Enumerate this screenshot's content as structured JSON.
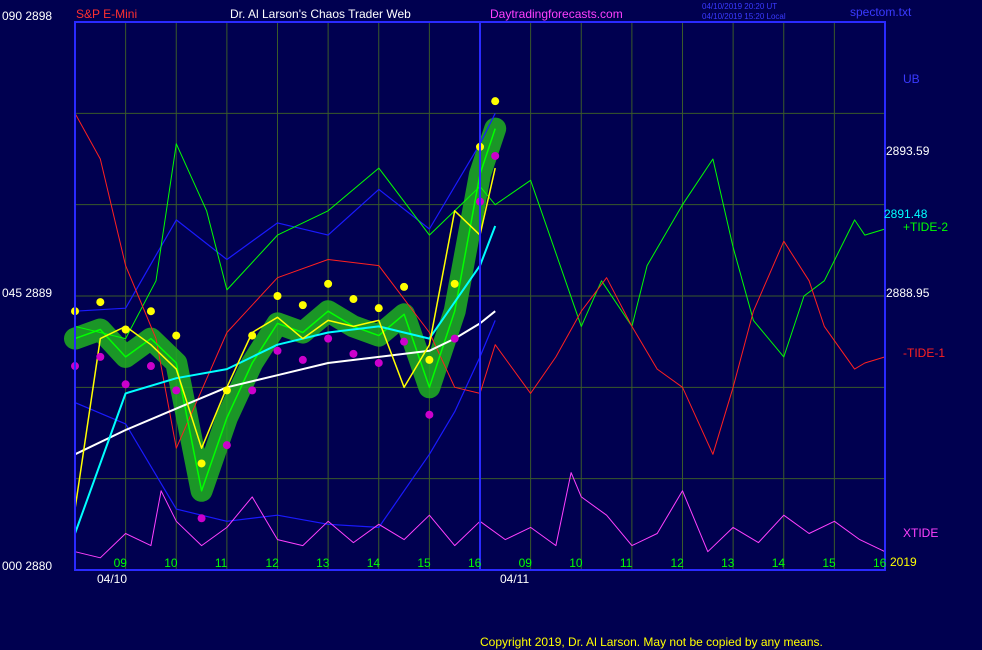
{
  "header": {
    "symbol": "S&P E-Mini",
    "title": "Dr. Al Larson's Chaos Trader Web",
    "site": "Daytradingforecasts.com",
    "time_utc": "04/10/2019 20:20 UT",
    "time_local": "04/10/2019 15:20 Local",
    "file": "spectom.txt"
  },
  "footer": {
    "copyright": "Copyright 2019, Dr. Al Larson. May not be copied by any means."
  },
  "colors": {
    "background": "#000050",
    "frame": "#2a2aff",
    "grid": "#3a5a2a",
    "price": "#00ff00",
    "halo": "#20b020",
    "fast_avg": "#ffff00",
    "mid_avg": "#00ffff",
    "slow_avg": "#ffffff",
    "micro": "#ff00ff",
    "tide_plus": "#00ff00",
    "tide_minus": "#ff2020",
    "xtide": "#ff40ff",
    "bands": "#1a1aff",
    "hi_dot": "#ffff00",
    "lo_dot": "#cc00cc"
  },
  "chart_data": {
    "type": "line",
    "title": "S&P E-Mini",
    "x_axis": {
      "labels": [
        "09",
        "10",
        "11",
        "12",
        "13",
        "14",
        "15",
        "16",
        "09",
        "10",
        "11",
        "12",
        "13",
        "14",
        "15",
        "16"
      ],
      "dates": [
        "04/10",
        "04/11"
      ],
      "year": "2019"
    },
    "y_axis": {
      "left_labels": [
        "090  2898",
        "045  2889",
        "000  2880"
      ],
      "ylim": [
        2880,
        2898
      ]
    },
    "right_labels": {
      "ub": "UB",
      "levels": [
        "2893.59",
        "2891.48",
        "2888.95"
      ],
      "series": [
        "+TIDE-2",
        "-TIDE-1",
        "XTIDE"
      ]
    },
    "series": [
      {
        "name": "price",
        "x": [
          0.0,
          0.5,
          1.0,
          1.5,
          2.0,
          2.5,
          3.0,
          3.5,
          4.0,
          4.5,
          5.0,
          5.5,
          6.0,
          6.5,
          7.0,
          7.5,
          8.0,
          8.3
        ],
        "values": [
          2887.6,
          2887.9,
          2887.0,
          2887.6,
          2886.8,
          2882.6,
          2885.0,
          2886.8,
          2888.1,
          2887.8,
          2888.5,
          2888.0,
          2887.7,
          2888.4,
          2886.0,
          2888.5,
          2893.0,
          2894.5
        ]
      },
      {
        "name": "avg-fast",
        "x": [
          0.0,
          0.5,
          1.0,
          1.5,
          2.0,
          2.5,
          3.0,
          3.5,
          4.0,
          4.5,
          5.0,
          5.5,
          6.0,
          6.5,
          7.0,
          7.5,
          8.0,
          8.3
        ],
        "values": [
          2882.0,
          2887.6,
          2888.0,
          2887.4,
          2886.6,
          2884.0,
          2886.0,
          2887.8,
          2888.3,
          2887.6,
          2888.2,
          2888.0,
          2888.2,
          2886.0,
          2887.4,
          2891.8,
          2891.0,
          2893.2
        ]
      },
      {
        "name": "avg-mid",
        "x": [
          0.0,
          1.0,
          2.0,
          3.0,
          4.0,
          5.0,
          6.0,
          7.0,
          7.5,
          8.0,
          8.3
        ],
        "values": [
          2881.2,
          2885.8,
          2886.3,
          2886.6,
          2887.4,
          2887.8,
          2888.0,
          2887.6,
          2888.8,
          2890.0,
          2891.3
        ]
      },
      {
        "name": "avg-slow",
        "x": [
          0.0,
          1.0,
          2.0,
          3.0,
          4.0,
          5.0,
          6.0,
          7.0,
          7.5,
          8.0,
          8.3
        ],
        "values": [
          2883.8,
          2884.6,
          2885.3,
          2886.0,
          2886.4,
          2886.8,
          2887.0,
          2887.2,
          2887.6,
          2888.1,
          2888.5
        ]
      },
      {
        "name": "+TIDE-2",
        "x": [
          0.0,
          1.0,
          1.6,
          2.0,
          2.6,
          3.0,
          4.0,
          5.0,
          6.0,
          7.0,
          8.0,
          8.3,
          9.0,
          10.0,
          10.4,
          11.0,
          11.3,
          12.0,
          12.6,
          13.0,
          13.4,
          14.0,
          14.4,
          14.8,
          15.4,
          15.6,
          16.0
        ],
        "values": [
          2888.0,
          2887.6,
          2889.5,
          2894.0,
          2891.8,
          2889.2,
          2891.0,
          2891.8,
          2893.2,
          2891.0,
          2892.6,
          2892.0,
          2892.8,
          2888.0,
          2889.5,
          2888.0,
          2890.0,
          2892.0,
          2893.5,
          2890.6,
          2888.2,
          2887.0,
          2889.0,
          2889.5,
          2891.5,
          2891.0,
          2891.2
        ]
      },
      {
        "name": "-TIDE-1",
        "x": [
          0.0,
          0.5,
          1.0,
          1.6,
          2.0,
          3.0,
          4.0,
          5.0,
          6.0,
          7.0,
          7.5,
          8.0,
          8.3,
          9.0,
          9.5,
          10.0,
          10.5,
          11.0,
          11.5,
          12.0,
          12.6,
          13.0,
          13.4,
          14.0,
          14.5,
          14.8,
          15.4,
          15.6,
          16.0
        ],
        "values": [
          2895.0,
          2893.5,
          2890.0,
          2887.6,
          2884.0,
          2887.8,
          2889.6,
          2890.2,
          2890.0,
          2887.8,
          2886.0,
          2885.8,
          2887.4,
          2885.8,
          2887.0,
          2888.5,
          2889.6,
          2888.0,
          2886.6,
          2886.0,
          2883.8,
          2886.0,
          2888.5,
          2890.8,
          2889.5,
          2888.0,
          2886.6,
          2886.8,
          2887.0
        ]
      },
      {
        "name": "band-upper",
        "x": [
          0.0,
          1.0,
          2.0,
          3.0,
          4.0,
          5.0,
          6.0,
          7.0,
          8.0,
          8.3
        ],
        "values": [
          2888.5,
          2888.6,
          2891.5,
          2890.2,
          2891.4,
          2891.0,
          2892.5,
          2891.2,
          2894.0,
          2895.0
        ]
      },
      {
        "name": "band-lower",
        "x": [
          0.0,
          1.0,
          2.0,
          3.0,
          4.0,
          5.0,
          6.0,
          7.0,
          7.5,
          8.0,
          8.3
        ],
        "values": [
          2885.5,
          2884.8,
          2882.0,
          2881.6,
          2881.8,
          2881.5,
          2881.4,
          2883.8,
          2885.2,
          2887.0,
          2888.2
        ]
      },
      {
        "name": "XTIDE",
        "x": [
          0.0,
          0.5,
          1.0,
          1.5,
          1.7,
          2.0,
          2.5,
          3.0,
          3.5,
          4.0,
          4.5,
          5.0,
          5.5,
          6.0,
          6.5,
          7.0,
          7.5,
          8.0,
          8.5,
          9.0,
          9.5,
          9.8,
          10.0,
          10.5,
          11.0,
          11.5,
          12.0,
          12.5,
          13.0,
          13.5,
          14.0,
          14.5,
          15.0,
          15.5,
          16.0
        ],
        "values": [
          2880.6,
          2880.4,
          2881.2,
          2880.8,
          2882.6,
          2881.6,
          2880.8,
          2881.4,
          2882.4,
          2881.0,
          2880.8,
          2881.6,
          2880.9,
          2881.5,
          2881.0,
          2881.8,
          2880.8,
          2881.6,
          2881.0,
          2881.4,
          2880.8,
          2883.2,
          2882.4,
          2881.8,
          2880.8,
          2881.2,
          2882.6,
          2880.6,
          2881.4,
          2880.9,
          2881.8,
          2881.2,
          2881.6,
          2881.0,
          2880.6
        ]
      }
    ]
  }
}
